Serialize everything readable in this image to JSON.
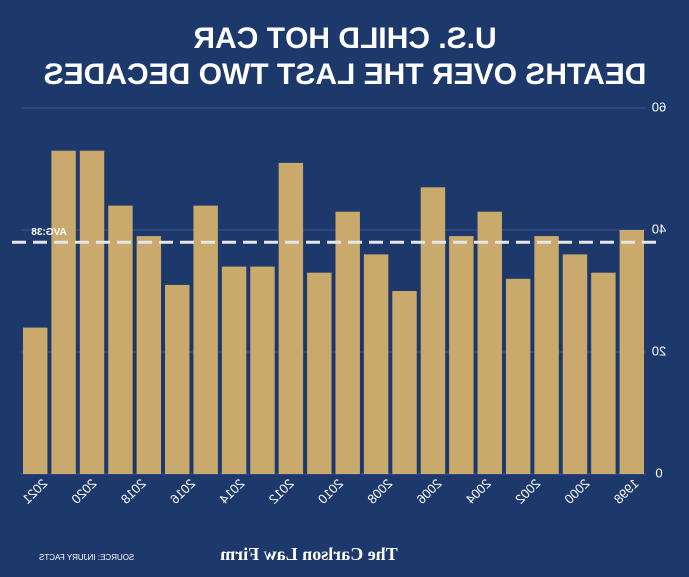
{
  "chart_data": {
    "type": "bar",
    "title": [
      "U.S. CHILD HOT CAR",
      "DEATHS OVER THE LAST TWO DECADES"
    ],
    "categories": [
      null,
      null,
      null,
      null,
      null,
      null,
      null,
      null,
      null,
      null,
      null,
      null,
      null,
      null,
      null,
      null,
      null,
      null,
      null,
      null,
      null,
      null
    ],
    "x_labels": [
      "1998",
      "2000",
      "2002",
      "2004",
      "2006",
      "2008",
      "2010",
      "2012",
      "2014",
      "2016",
      "2018",
      "2020",
      "2021"
    ],
    "values": [
      40,
      33,
      36,
      39,
      32,
      43,
      39,
      47,
      30,
      36,
      43,
      33,
      51,
      34,
      34,
      44,
      31,
      39,
      44,
      53,
      53,
      24
    ],
    "color": "#c9aa6c",
    "ylim": [
      0,
      60
    ],
    "yticks": [
      0,
      20,
      40,
      60
    ],
    "grid": true,
    "average": {
      "value": 38,
      "label": "AVG:38"
    },
    "brand": "The Carlson Law Firm",
    "source": "SOURCE: INJURY FACTS",
    "mirrored": true
  }
}
